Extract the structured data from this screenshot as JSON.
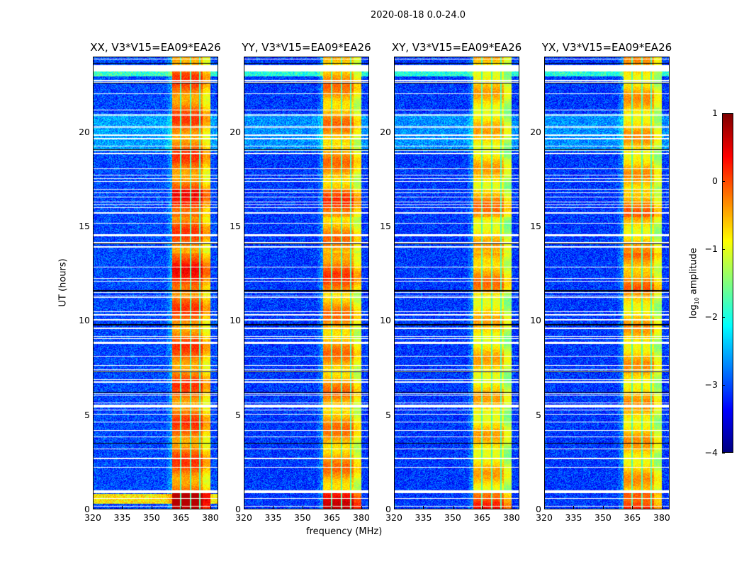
{
  "chart_data": {
    "type": "heatmap",
    "suptitle": "2020-08-18 0.0-24.0",
    "xlabel": "frequency (MHz)",
    "ylabel": "UT (hours)",
    "xlim": [
      320,
      384
    ],
    "ylim": [
      0,
      24
    ],
    "xticks": [
      "320",
      "335",
      "350",
      "365",
      "380"
    ],
    "xtick_values": [
      320,
      335,
      350,
      365,
      380
    ],
    "yticks": [
      "0",
      "5",
      "10",
      "15",
      "20"
    ],
    "ytick_values": [
      0,
      5,
      10,
      15,
      20
    ],
    "panels": [
      {
        "title": "XX, V3*V15=EA09*EA26",
        "band_level": 0.0,
        "low_level": -3.2
      },
      {
        "title": "YY, V3*V15=EA09*EA26",
        "band_level": -0.3,
        "low_level": -3.3
      },
      {
        "title": "XY, V3*V15=EA09*EA26",
        "band_level": -0.6,
        "low_level": -3.3
      },
      {
        "title": "YX, V3*V15=EA09*EA26",
        "band_level": -0.5,
        "low_level": -3.3
      }
    ],
    "rfi_band_mhz": [
      360.5,
      380
    ],
    "colorbar": {
      "label": "log10 amplitude",
      "label_main": "log",
      "label_sub": "10",
      "label_rest": " amplitude",
      "range": [
        -4,
        1
      ],
      "ticks": [
        "1",
        "0",
        "−1",
        "−2",
        "−3",
        "−4"
      ],
      "tick_values": [
        1,
        0,
        -1,
        -2,
        -3,
        -4
      ],
      "colormap": "jet"
    }
  }
}
